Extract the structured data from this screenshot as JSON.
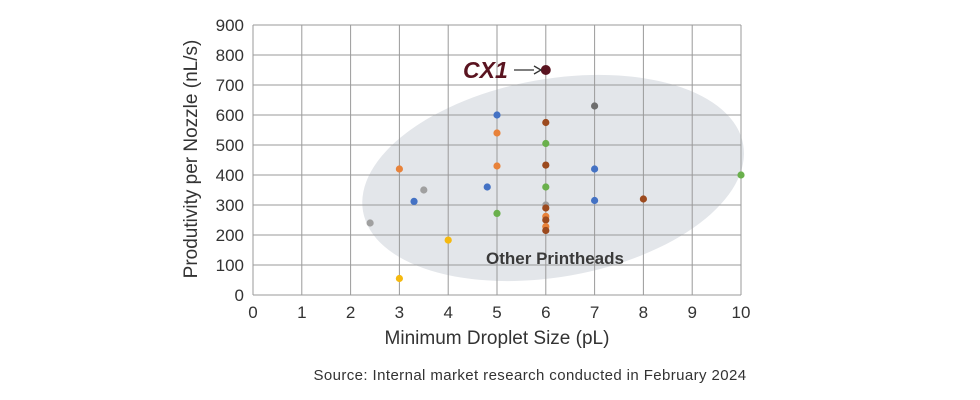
{
  "chart_data": {
    "type": "scatter",
    "title": "",
    "xlabel": "Minimum Droplet Size (pL)",
    "ylabel": "Produtivity  per Nozzle (nL/s)",
    "xlim": [
      0,
      10
    ],
    "ylim": [
      0,
      900
    ],
    "xticks": [
      "0",
      "1",
      "2",
      "3",
      "4",
      "5",
      "6",
      "7",
      "8",
      "9",
      "10"
    ],
    "yticks": [
      "0",
      "100",
      "200",
      "300",
      "400",
      "500",
      "600",
      "700",
      "800",
      "900"
    ],
    "grid": true,
    "highlight": {
      "label": "CX1",
      "x": 6,
      "y": 750,
      "color": "#5a1420"
    },
    "cluster_label": "Other Printheads",
    "colors": {
      "blue": "#4472c4",
      "orange": "#e8823a",
      "gray": "#a0a0a0",
      "darkgray": "#6e6e6e",
      "green": "#6ab04c",
      "brown": "#9c4a1e",
      "yellow": "#f5b90f",
      "ellipse": "#e3e6ea"
    },
    "points": [
      {
        "x": 2.4,
        "y": 240,
        "color": "gray"
      },
      {
        "x": 3,
        "y": 420,
        "color": "orange"
      },
      {
        "x": 3,
        "y": 55,
        "color": "yellow"
      },
      {
        "x": 3.3,
        "y": 312,
        "color": "blue"
      },
      {
        "x": 3.5,
        "y": 350,
        "color": "gray"
      },
      {
        "x": 4,
        "y": 183,
        "color": "yellow"
      },
      {
        "x": 4.8,
        "y": 360,
        "color": "blue"
      },
      {
        "x": 5,
        "y": 600,
        "color": "blue"
      },
      {
        "x": 5,
        "y": 540,
        "color": "orange"
      },
      {
        "x": 5,
        "y": 430,
        "color": "orange"
      },
      {
        "x": 5,
        "y": 272,
        "color": "green"
      },
      {
        "x": 6,
        "y": 575,
        "color": "brown"
      },
      {
        "x": 6,
        "y": 505,
        "color": "green"
      },
      {
        "x": 6,
        "y": 433,
        "color": "brown"
      },
      {
        "x": 6,
        "y": 360,
        "color": "green"
      },
      {
        "x": 6,
        "y": 300,
        "color": "gray"
      },
      {
        "x": 6,
        "y": 290,
        "color": "brown"
      },
      {
        "x": 6,
        "y": 262,
        "color": "orange"
      },
      {
        "x": 6,
        "y": 250,
        "color": "brown"
      },
      {
        "x": 6,
        "y": 228,
        "color": "orange"
      },
      {
        "x": 6,
        "y": 215,
        "color": "brown"
      },
      {
        "x": 7,
        "y": 630,
        "color": "darkgray"
      },
      {
        "x": 7,
        "y": 420,
        "color": "blue"
      },
      {
        "x": 7,
        "y": 315,
        "color": "blue"
      },
      {
        "x": 8,
        "y": 320,
        "color": "brown"
      },
      {
        "x": 10,
        "y": 400,
        "color": "green"
      }
    ]
  },
  "source_note": "Source: Internal market research conducted in February 2024"
}
